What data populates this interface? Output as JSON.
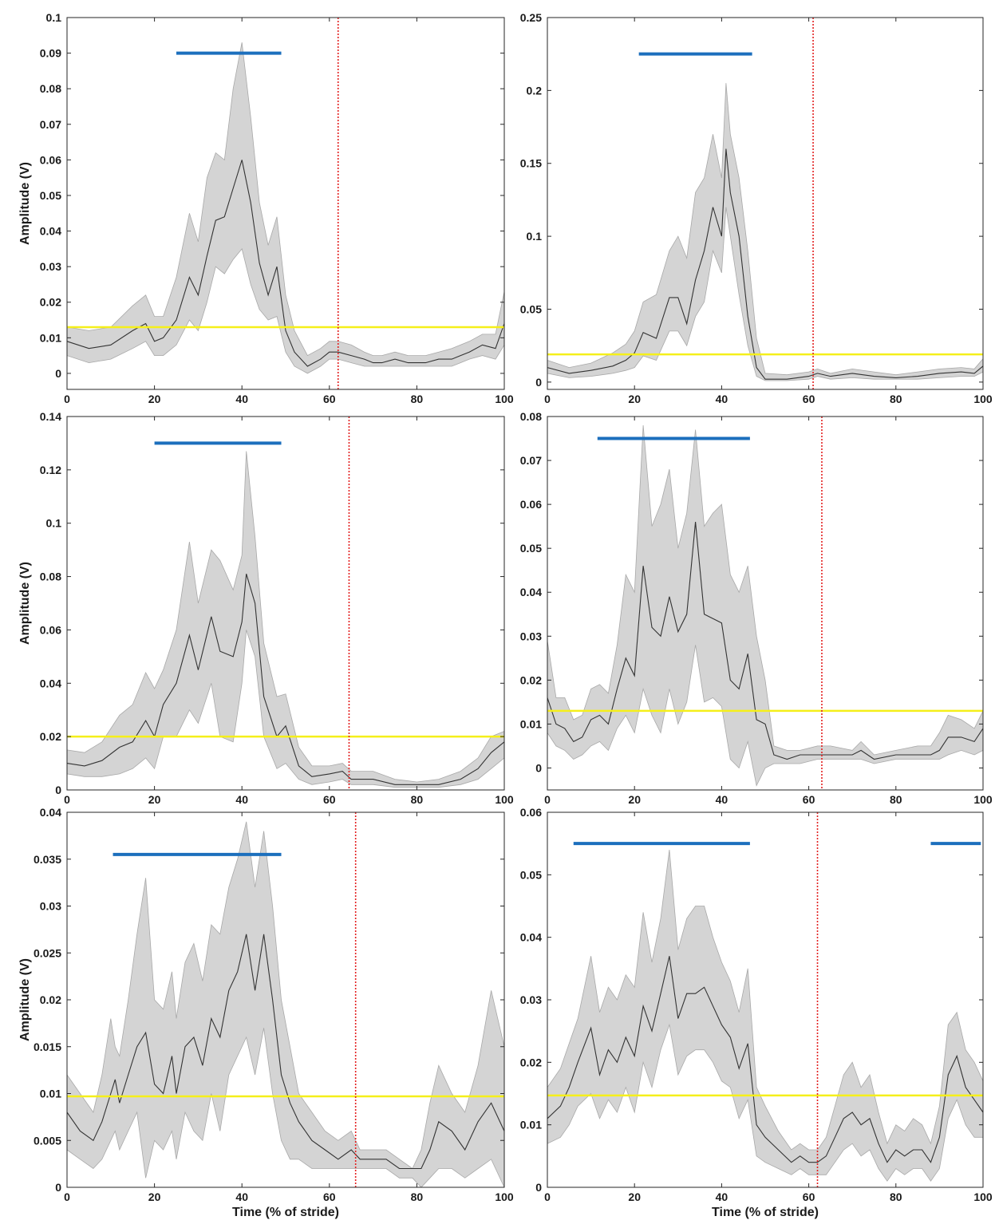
{
  "chart_data": [
    {
      "type": "line",
      "xlabel": "",
      "ylabel": "Amplitude (V)",
      "xlim": [
        0,
        100
      ],
      "ylim": [
        -0.0045,
        0.1
      ],
      "xticks": [
        "0",
        "20",
        "40",
        "60",
        "80",
        "100"
      ],
      "yticks": [
        "0",
        "0.01",
        "0.02",
        "0.03",
        "0.04",
        "0.05",
        "0.06",
        "0.07",
        "0.08",
        "0.09",
        "0.1"
      ],
      "threshold": 0.013,
      "toe_off": 62,
      "activation_bars": [
        {
          "x_start": 25,
          "x_end": 49,
          "y": 0.09
        }
      ],
      "x": [
        0,
        5,
        10,
        15,
        18,
        20,
        22,
        25,
        28,
        30,
        32,
        34,
        36,
        38,
        40,
        42,
        44,
        46,
        48,
        50,
        52,
        55,
        58,
        60,
        62,
        65,
        68,
        70,
        72,
        75,
        78,
        80,
        82,
        85,
        88,
        90,
        92,
        95,
        98,
        100
      ],
      "mean": [
        0.009,
        0.007,
        0.008,
        0.012,
        0.014,
        0.009,
        0.01,
        0.015,
        0.027,
        0.022,
        0.033,
        0.043,
        0.044,
        0.052,
        0.06,
        0.048,
        0.031,
        0.022,
        0.03,
        0.012,
        0.006,
        0.002,
        0.004,
        0.006,
        0.006,
        0.005,
        0.004,
        0.003,
        0.003,
        0.004,
        0.003,
        0.003,
        0.003,
        0.004,
        0.004,
        0.005,
        0.006,
        0.008,
        0.007,
        0.014
      ],
      "lower": [
        0.005,
        0.003,
        0.004,
        0.007,
        0.009,
        0.005,
        0.005,
        0.008,
        0.015,
        0.012,
        0.02,
        0.03,
        0.028,
        0.032,
        0.035,
        0.025,
        0.018,
        0.015,
        0.016,
        0.006,
        0.002,
        0.0,
        0.002,
        0.004,
        0.004,
        0.003,
        0.002,
        0.002,
        0.002,
        0.002,
        0.002,
        0.002,
        0.002,
        0.002,
        0.002,
        0.003,
        0.004,
        0.005,
        0.004,
        0.008
      ],
      "upper": [
        0.013,
        0.012,
        0.013,
        0.019,
        0.022,
        0.016,
        0.016,
        0.027,
        0.045,
        0.037,
        0.055,
        0.062,
        0.06,
        0.08,
        0.093,
        0.072,
        0.048,
        0.036,
        0.044,
        0.022,
        0.012,
        0.005,
        0.007,
        0.009,
        0.009,
        0.008,
        0.006,
        0.005,
        0.005,
        0.006,
        0.005,
        0.005,
        0.005,
        0.006,
        0.007,
        0.008,
        0.009,
        0.011,
        0.011,
        0.023
      ]
    },
    {
      "type": "line",
      "xlabel": "",
      "ylabel": "",
      "xlim": [
        0,
        100
      ],
      "ylim": [
        -0.005,
        0.25
      ],
      "xticks": [
        "0",
        "20",
        "40",
        "60",
        "80",
        "100"
      ],
      "yticks": [
        "0",
        "0.05",
        "0.1",
        "0.15",
        "0.2",
        "0.25"
      ],
      "threshold": 0.019,
      "toe_off": 61,
      "activation_bars": [
        {
          "x_start": 21,
          "x_end": 47,
          "y": 0.225
        }
      ],
      "x": [
        0,
        5,
        10,
        15,
        18,
        20,
        22,
        25,
        28,
        30,
        32,
        34,
        36,
        38,
        40,
        41,
        42,
        44,
        46,
        48,
        50,
        55,
        60,
        62,
        65,
        70,
        75,
        80,
        85,
        90,
        95,
        98,
        100
      ],
      "mean": [
        0.01,
        0.006,
        0.008,
        0.011,
        0.015,
        0.02,
        0.034,
        0.03,
        0.058,
        0.058,
        0.04,
        0.07,
        0.09,
        0.12,
        0.1,
        0.16,
        0.13,
        0.1,
        0.045,
        0.01,
        0.002,
        0.002,
        0.004,
        0.006,
        0.004,
        0.006,
        0.004,
        0.003,
        0.004,
        0.006,
        0.007,
        0.006,
        0.011
      ],
      "lower": [
        0.006,
        0.003,
        0.004,
        0.006,
        0.008,
        0.01,
        0.018,
        0.015,
        0.035,
        0.035,
        0.025,
        0.045,
        0.055,
        0.09,
        0.075,
        0.12,
        0.1,
        0.06,
        0.025,
        0.004,
        0.001,
        0.001,
        0.002,
        0.004,
        0.002,
        0.003,
        0.002,
        0.002,
        0.002,
        0.003,
        0.004,
        0.004,
        0.007
      ],
      "upper": [
        0.015,
        0.01,
        0.013,
        0.02,
        0.026,
        0.035,
        0.055,
        0.06,
        0.09,
        0.1,
        0.085,
        0.13,
        0.14,
        0.17,
        0.14,
        0.205,
        0.17,
        0.14,
        0.09,
        0.03,
        0.006,
        0.005,
        0.007,
        0.009,
        0.006,
        0.009,
        0.007,
        0.005,
        0.007,
        0.009,
        0.01,
        0.009,
        0.016
      ]
    },
    {
      "type": "line",
      "xlabel": "",
      "ylabel": "Amplitude (V)",
      "xlim": [
        0,
        100
      ],
      "ylim": [
        0,
        0.14
      ],
      "xticks": [
        "0",
        "20",
        "40",
        "60",
        "80",
        "100"
      ],
      "yticks": [
        "0",
        "0.02",
        "0.04",
        "0.06",
        "0.08",
        "0.1",
        "0.12",
        "0.14"
      ],
      "threshold": 0.02,
      "toe_off": 64.5,
      "activation_bars": [
        {
          "x_start": 20,
          "x_end": 49,
          "y": 0.13
        }
      ],
      "x": [
        0,
        4,
        8,
        12,
        15,
        18,
        20,
        22,
        25,
        28,
        30,
        33,
        35,
        38,
        40,
        41,
        43,
        45,
        48,
        50,
        53,
        56,
        60,
        63,
        65,
        70,
        75,
        80,
        85,
        90,
        94,
        97,
        100
      ],
      "mean": [
        0.01,
        0.009,
        0.011,
        0.016,
        0.018,
        0.026,
        0.02,
        0.032,
        0.04,
        0.058,
        0.045,
        0.065,
        0.052,
        0.05,
        0.063,
        0.081,
        0.07,
        0.035,
        0.02,
        0.024,
        0.009,
        0.005,
        0.006,
        0.007,
        0.004,
        0.004,
        0.002,
        0.002,
        0.002,
        0.004,
        0.008,
        0.014,
        0.018
      ],
      "lower": [
        0.006,
        0.005,
        0.005,
        0.006,
        0.008,
        0.012,
        0.008,
        0.02,
        0.02,
        0.03,
        0.025,
        0.04,
        0.02,
        0.018,
        0.04,
        0.06,
        0.05,
        0.02,
        0.008,
        0.01,
        0.004,
        0.002,
        0.003,
        0.004,
        0.002,
        0.002,
        0.001,
        0.001,
        0.001,
        0.002,
        0.004,
        0.008,
        0.012
      ],
      "upper": [
        0.015,
        0.014,
        0.018,
        0.028,
        0.032,
        0.044,
        0.038,
        0.045,
        0.06,
        0.093,
        0.07,
        0.09,
        0.086,
        0.075,
        0.088,
        0.127,
        0.095,
        0.055,
        0.035,
        0.036,
        0.016,
        0.009,
        0.009,
        0.01,
        0.007,
        0.007,
        0.004,
        0.003,
        0.004,
        0.007,
        0.012,
        0.02,
        0.022
      ]
    },
    {
      "type": "line",
      "xlabel": "",
      "ylabel": "",
      "xlim": [
        0,
        100
      ],
      "ylim": [
        -0.005,
        0.08
      ],
      "xticks": [
        "0",
        "20",
        "40",
        "60",
        "80",
        "100"
      ],
      "yticks": [
        "0",
        "0.01",
        "0.02",
        "0.03",
        "0.04",
        "0.05",
        "0.06",
        "0.07",
        "0.08"
      ],
      "threshold": 0.013,
      "toe_off": 63,
      "activation_bars": [
        {
          "x_start": 11.5,
          "x_end": 46.5,
          "y": 0.075
        }
      ],
      "x": [
        0,
        2,
        4,
        6,
        8,
        10,
        12,
        14,
        16,
        18,
        20,
        22,
        24,
        26,
        28,
        30,
        32,
        34,
        36,
        38,
        40,
        42,
        44,
        46,
        48,
        50,
        52,
        55,
        58,
        62,
        65,
        70,
        72,
        75,
        80,
        85,
        88,
        90,
        92,
        95,
        98,
        100
      ],
      "mean": [
        0.016,
        0.01,
        0.009,
        0.006,
        0.007,
        0.011,
        0.012,
        0.01,
        0.018,
        0.025,
        0.021,
        0.046,
        0.032,
        0.03,
        0.039,
        0.031,
        0.035,
        0.056,
        0.035,
        0.034,
        0.033,
        0.02,
        0.018,
        0.026,
        0.011,
        0.01,
        0.003,
        0.002,
        0.003,
        0.003,
        0.003,
        0.003,
        0.004,
        0.002,
        0.003,
        0.003,
        0.003,
        0.004,
        0.007,
        0.007,
        0.006,
        0.009
      ],
      "lower": [
        0.008,
        0.005,
        0.004,
        0.002,
        0.003,
        0.005,
        0.006,
        0.004,
        0.009,
        0.012,
        0.008,
        0.018,
        0.012,
        0.008,
        0.018,
        0.01,
        0.015,
        0.028,
        0.015,
        0.016,
        0.014,
        0.002,
        0.0,
        0.006,
        -0.004,
        0.0,
        0.001,
        0.001,
        0.001,
        0.002,
        0.002,
        0.002,
        0.002,
        0.001,
        0.002,
        0.002,
        0.002,
        0.002,
        0.003,
        0.004,
        0.003,
        0.004
      ],
      "upper": [
        0.029,
        0.016,
        0.016,
        0.011,
        0.012,
        0.018,
        0.019,
        0.017,
        0.028,
        0.044,
        0.04,
        0.078,
        0.055,
        0.06,
        0.068,
        0.05,
        0.058,
        0.077,
        0.055,
        0.058,
        0.06,
        0.044,
        0.04,
        0.046,
        0.03,
        0.02,
        0.005,
        0.004,
        0.004,
        0.005,
        0.005,
        0.004,
        0.006,
        0.003,
        0.004,
        0.005,
        0.005,
        0.008,
        0.012,
        0.011,
        0.009,
        0.013
      ]
    },
    {
      "type": "line",
      "xlabel": "Time (% of stride)",
      "ylabel": "Amplitude (V)",
      "xlim": [
        0,
        100
      ],
      "ylim": [
        0,
        0.04
      ],
      "xticks": [
        "0",
        "20",
        "40",
        "60",
        "80",
        "100"
      ],
      "yticks": [
        "0",
        "0.005",
        "0.01",
        "0.015",
        "0.02",
        "0.025",
        "0.03",
        "0.035",
        "0.04"
      ],
      "threshold": 0.0097,
      "toe_off": 66,
      "activation_bars": [
        {
          "x_start": 10.5,
          "x_end": 49,
          "y": 0.0355
        }
      ],
      "x": [
        0,
        3,
        6,
        8,
        10,
        11,
        12,
        14,
        16,
        18,
        20,
        22,
        24,
        25,
        27,
        29,
        31,
        33,
        35,
        37,
        39,
        41,
        43,
        45,
        47,
        49,
        51,
        53,
        56,
        59,
        62,
        65,
        67,
        70,
        73,
        76,
        79,
        81,
        83,
        85,
        88,
        91,
        94,
        97,
        100
      ],
      "mean": [
        0.008,
        0.006,
        0.005,
        0.007,
        0.01,
        0.0115,
        0.009,
        0.012,
        0.015,
        0.0165,
        0.011,
        0.01,
        0.014,
        0.01,
        0.015,
        0.016,
        0.013,
        0.018,
        0.016,
        0.021,
        0.023,
        0.027,
        0.021,
        0.027,
        0.02,
        0.012,
        0.009,
        0.007,
        0.005,
        0.004,
        0.003,
        0.004,
        0.003,
        0.003,
        0.003,
        0.002,
        0.002,
        0.002,
        0.004,
        0.007,
        0.006,
        0.004,
        0.007,
        0.009,
        0.006
      ],
      "lower": [
        0.004,
        0.003,
        0.002,
        0.003,
        0.005,
        0.006,
        0.004,
        0.006,
        0.008,
        0.001,
        0.005,
        0.004,
        0.006,
        0.003,
        0.008,
        0.006,
        0.005,
        0.01,
        0.006,
        0.012,
        0.014,
        0.016,
        0.012,
        0.017,
        0.01,
        0.005,
        0.003,
        0.003,
        0.002,
        0.002,
        0.002,
        0.002,
        0.002,
        0.002,
        0.002,
        0.001,
        0.001,
        0.0,
        0.001,
        0.002,
        0.002,
        0.001,
        0.002,
        0.003,
        0.0
      ],
      "upper": [
        0.012,
        0.01,
        0.008,
        0.012,
        0.018,
        0.015,
        0.014,
        0.02,
        0.027,
        0.033,
        0.02,
        0.019,
        0.023,
        0.018,
        0.024,
        0.026,
        0.022,
        0.028,
        0.027,
        0.032,
        0.035,
        0.039,
        0.032,
        0.038,
        0.03,
        0.02,
        0.015,
        0.01,
        0.008,
        0.006,
        0.005,
        0.006,
        0.004,
        0.004,
        0.004,
        0.003,
        0.002,
        0.004,
        0.009,
        0.013,
        0.01,
        0.008,
        0.013,
        0.021,
        0.015
      ]
    },
    {
      "type": "line",
      "xlabel": "Time (% of stride)",
      "ylabel": "",
      "xlim": [
        0,
        100
      ],
      "ylim": [
        0,
        0.06
      ],
      "xticks": [
        "0",
        "20",
        "40",
        "60",
        "80",
        "100"
      ],
      "yticks": [
        "0",
        "0.01",
        "0.02",
        "0.03",
        "0.04",
        "0.05",
        "0.06"
      ],
      "threshold": 0.0147,
      "toe_off": 62,
      "activation_bars": [
        {
          "x_start": 6,
          "x_end": 46.5,
          "y": 0.055
        },
        {
          "x_start": 88,
          "x_end": 99.5,
          "y": 0.055
        }
      ],
      "x": [
        0,
        3,
        5,
        7,
        10,
        12,
        14,
        16,
        18,
        20,
        22,
        24,
        26,
        28,
        30,
        32,
        34,
        36,
        38,
        40,
        42,
        44,
        46,
        48,
        50,
        53,
        56,
        58,
        60,
        62,
        64,
        66,
        68,
        70,
        72,
        74,
        76,
        78,
        80,
        82,
        84,
        86,
        88,
        90,
        92,
        94,
        96,
        98,
        100
      ],
      "mean": [
        0.011,
        0.013,
        0.016,
        0.02,
        0.0255,
        0.018,
        0.022,
        0.02,
        0.024,
        0.021,
        0.029,
        0.025,
        0.031,
        0.037,
        0.027,
        0.031,
        0.031,
        0.032,
        0.029,
        0.026,
        0.024,
        0.019,
        0.023,
        0.01,
        0.008,
        0.006,
        0.004,
        0.005,
        0.004,
        0.004,
        0.005,
        0.008,
        0.011,
        0.012,
        0.01,
        0.011,
        0.007,
        0.004,
        0.006,
        0.005,
        0.006,
        0.006,
        0.004,
        0.008,
        0.018,
        0.021,
        0.016,
        0.014,
        0.012
      ],
      "lower": [
        0.007,
        0.008,
        0.01,
        0.013,
        0.015,
        0.011,
        0.014,
        0.012,
        0.016,
        0.012,
        0.02,
        0.016,
        0.022,
        0.026,
        0.018,
        0.021,
        0.022,
        0.022,
        0.02,
        0.017,
        0.016,
        0.011,
        0.014,
        0.005,
        0.004,
        0.003,
        0.002,
        0.003,
        0.002,
        0.002,
        0.002,
        0.004,
        0.006,
        0.007,
        0.005,
        0.006,
        0.003,
        0.001,
        0.003,
        0.002,
        0.003,
        0.003,
        0.001,
        0.003,
        0.011,
        0.014,
        0.01,
        0.008,
        0.008
      ],
      "upper": [
        0.016,
        0.019,
        0.023,
        0.027,
        0.037,
        0.028,
        0.032,
        0.03,
        0.034,
        0.032,
        0.044,
        0.036,
        0.043,
        0.054,
        0.038,
        0.043,
        0.045,
        0.045,
        0.04,
        0.036,
        0.033,
        0.028,
        0.035,
        0.016,
        0.013,
        0.009,
        0.006,
        0.007,
        0.006,
        0.006,
        0.008,
        0.013,
        0.018,
        0.02,
        0.016,
        0.018,
        0.012,
        0.007,
        0.01,
        0.009,
        0.011,
        0.01,
        0.007,
        0.013,
        0.026,
        0.028,
        0.022,
        0.02,
        0.017
      ]
    }
  ]
}
